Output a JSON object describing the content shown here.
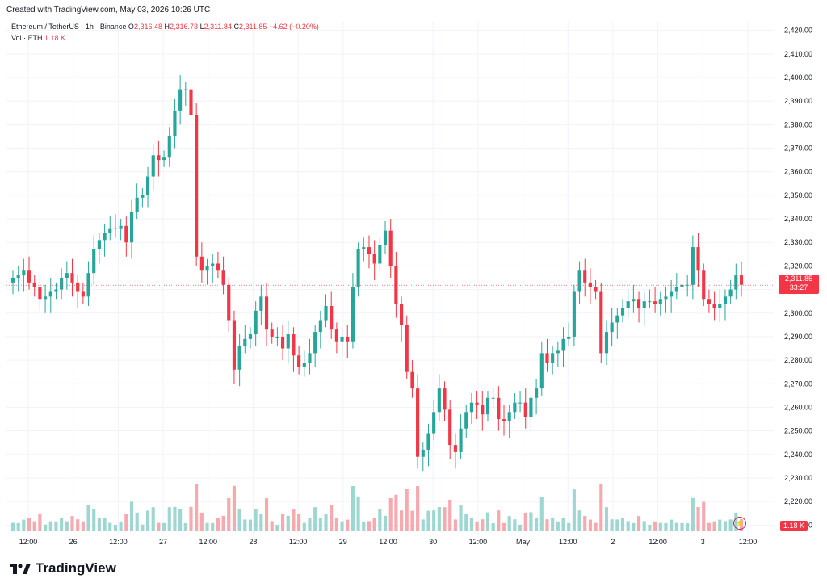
{
  "header": {
    "created": "Created with TradingView.com, May 03, 2026 10:26 UTC"
  },
  "legend": {
    "symbol": "Ethereum / TetherUS · 1h · Binance",
    "o_label": "O",
    "o_value": "2,316.48",
    "h_label": "H",
    "h_value": "2,316.73",
    "l_label": "L",
    "l_value": "2,311.84",
    "c_label": "C",
    "c_value": "2,311.85",
    "change": "−4.62 (−0.20%)",
    "vol_label": "Vol · ETH",
    "vol_value": "1.18 K"
  },
  "price_tag": {
    "price": "2,311.85",
    "countdown": "33:27"
  },
  "volume_tag": "1.18 K",
  "brand": "TradingView",
  "colors": {
    "up": "#26a69a",
    "down": "#f23645",
    "up_volume": "#9ed7d1",
    "down_volume": "#f7a9b0"
  },
  "chart_data": {
    "type": "candlestick",
    "y_axis": {
      "ticks": [
        "2,210.00",
        "2,220.00",
        "2,230.00",
        "2,240.00",
        "2,250.00",
        "2,260.00",
        "2,270.00",
        "2,280.00",
        "2,290.00",
        "2,300.00",
        "2,310.00",
        "2,320.00",
        "2,330.00",
        "2,340.00",
        "2,350.00",
        "2,360.00",
        "2,370.00",
        "2,380.00",
        "2,390.00",
        "2,400.00",
        "2,410.00",
        "2,420.00"
      ],
      "range": [
        2206,
        2424
      ]
    },
    "x_axis": {
      "ticks": [
        "12:00",
        "26",
        "12:00",
        "27",
        "12:00",
        "28",
        "12:00",
        "29",
        "12:00",
        "30",
        "12:00",
        "May",
        "12:00",
        "2",
        "12:00",
        "3",
        "12:00"
      ]
    },
    "last_price": 2311.85,
    "grid": true,
    "series": [
      {
        "close_values": [
          2315,
          2316,
          2318,
          2313,
          2311,
          2306,
          2307,
          2309,
          2310,
          2315,
          2317,
          2313,
          2309,
          2307,
          2317,
          2327,
          2331,
          2334,
          2336,
          2336,
          2337,
          2330,
          2343,
          2349,
          2350,
          2358,
          2367,
          2365,
          2366,
          2375,
          2386,
          2395,
          2395,
          2384,
          2324,
          2318,
          2320,
          2321,
          2318,
          2312,
          2297,
          2276,
          2286,
          2289,
          2291,
          2301,
          2307,
          2293,
          2290,
          2290,
          2285,
          2291,
          2282,
          2277,
          2279,
          2283,
          2292,
          2297,
          2303,
          2293,
          2288,
          2290,
          2288,
          2311,
          2327,
          2328,
          2325,
          2321,
          2329,
          2335,
          2320,
          2304,
          2295,
          2275,
          2268,
          2239,
          2242,
          2249,
          2258,
          2268,
          2259,
          2244,
          2241,
          2251,
          2258,
          2262,
          2261,
          2257,
          2264,
          2264,
          2255,
          2254,
          2258,
          2262,
          2262,
          2256,
          2264,
          2268,
          2283,
          2279,
          2283,
          2284,
          2289,
          2290,
          2309,
          2318,
          2313,
          2311,
          2309,
          2283,
          2292,
          2296,
          2299,
          2302,
          2305,
          2306,
          2302,
          2305,
          2305,
          2304,
          2306,
          2307,
          2309,
          2311,
          2312,
          2312,
          2328,
          2318,
          2306,
          2304,
          2302,
          2304,
          2307,
          2310,
          2316,
          2312
        ]
      }
    ]
  }
}
